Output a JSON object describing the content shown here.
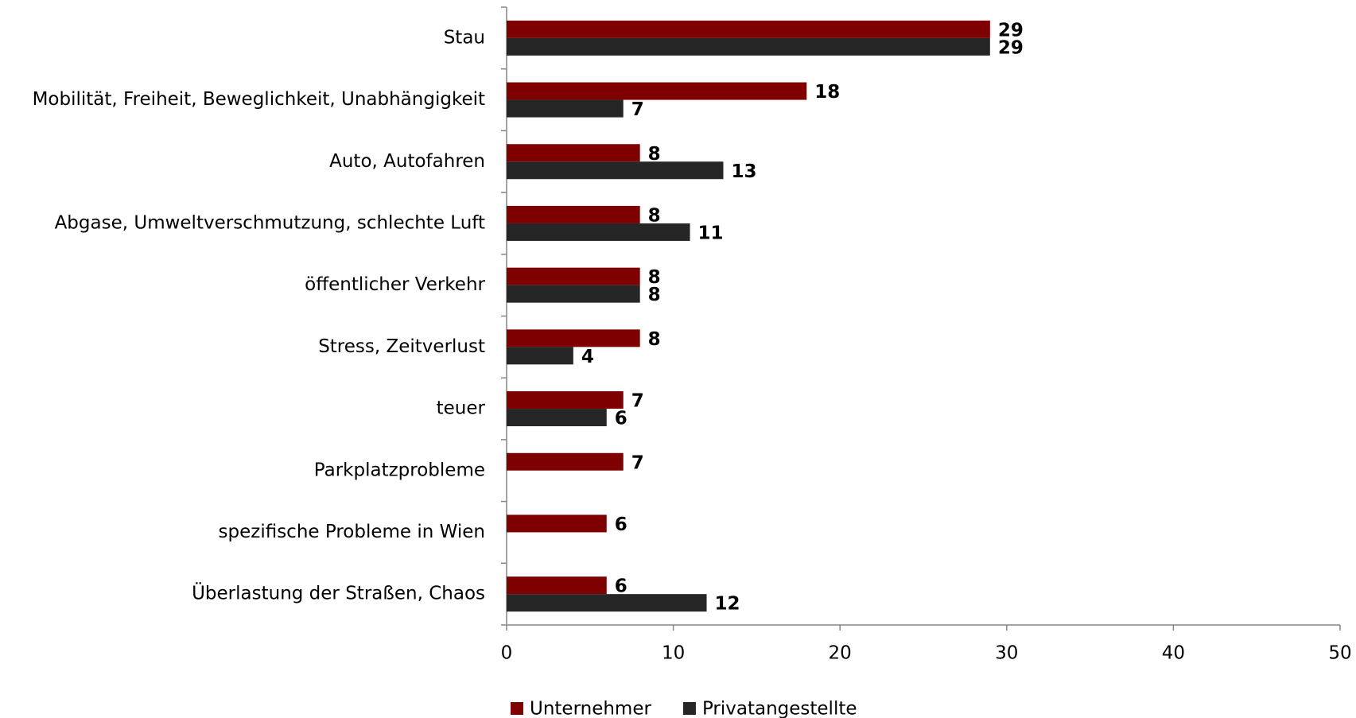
{
  "chart_data": {
    "type": "bar",
    "orientation": "horizontal",
    "categories": [
      "Stau",
      "Mobilität, Freiheit, Beweglichkeit, Unabhängigkeit",
      "Auto, Autofahren",
      "Abgase, Umweltverschmutzung, schlechte Luft",
      "öffentlicher Verkehr",
      "Stress, Zeitverlust",
      "teuer",
      "Parkplatzprobleme",
      "spezifische Probleme in Wien",
      "Überlastung der Straßen, Chaos"
    ],
    "series": [
      {
        "name": "Unternehmer",
        "color": "#7f0000",
        "values": [
          29,
          18,
          8,
          8,
          8,
          8,
          7,
          7,
          6,
          6
        ]
      },
      {
        "name": "Privatangestellte",
        "color": "#262626",
        "values": [
          29,
          7,
          13,
          11,
          8,
          4,
          6,
          null,
          null,
          12
        ]
      }
    ],
    "xlim": [
      0,
      50
    ],
    "xticks": [
      0,
      10,
      20,
      30,
      40,
      50
    ],
    "grid": false,
    "legend": "bottom"
  }
}
